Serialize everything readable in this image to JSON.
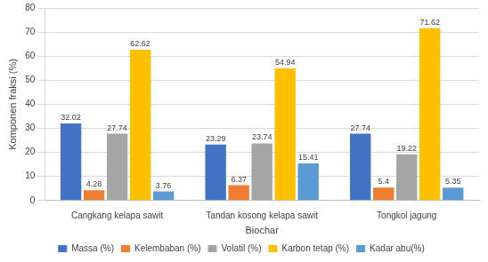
{
  "chart_data": {
    "type": "bar",
    "x_label": "Biochar",
    "y_label": "Komponen fraksi (%)",
    "categories": [
      "Cangkang kelapa sawit",
      "Tandan kosong kelapa sawit",
      "Tongkol jagung"
    ],
    "series": [
      {
        "name": "Massa (%)",
        "color": "#4472c4",
        "values": [
          32.02,
          23.29,
          27.74
        ]
      },
      {
        "name": "Kelembaban (%)",
        "color": "#ed7d31",
        "values": [
          4.28,
          6.37,
          5.4
        ]
      },
      {
        "name": "Volatil (%)",
        "color": "#a5a5a5",
        "values": [
          27.74,
          23.74,
          19.22
        ]
      },
      {
        "name": "Karbon tetap (%)",
        "color": "#ffc000",
        "values": [
          62.62,
          54.94,
          71.62
        ]
      },
      {
        "name": "Kadar abu(%)",
        "color": "#5b9bd5",
        "values": [
          3.76,
          15.41,
          5.35
        ]
      }
    ],
    "ylim": [
      0,
      80
    ],
    "yticks": [
      0,
      10,
      20,
      30,
      40,
      50,
      60,
      70,
      80
    ],
    "grid": true,
    "legend": "bottom",
    "data_labels": true
  }
}
